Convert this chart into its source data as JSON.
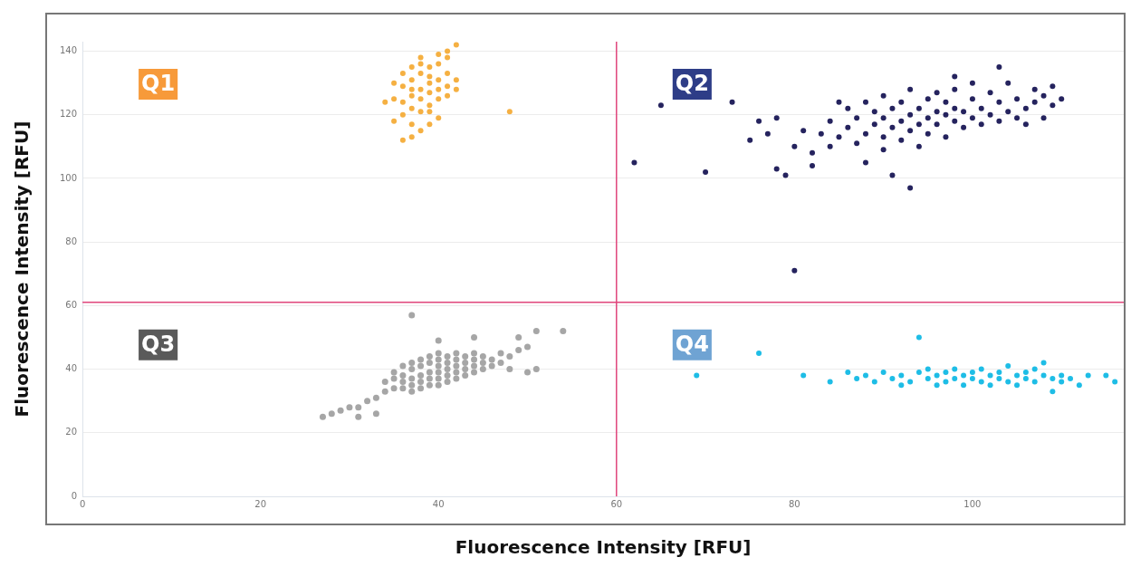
{
  "chart_data": {
    "type": "scatter",
    "xlabel": "Fluorescence Intensity [RFU]",
    "ylabel": "Fluorescence Intensity [RFU]",
    "xlim": [
      0,
      117
    ],
    "ylim": [
      0,
      143
    ],
    "xticks": [
      0,
      20,
      40,
      60,
      80,
      100
    ],
    "yticks": [
      0,
      20,
      40,
      60,
      80,
      100,
      120,
      140
    ],
    "grid": "y",
    "legend": false,
    "marker": "circle",
    "ref_lines": [
      {
        "axis": "x",
        "value": 60,
        "color": "#e0457b"
      },
      {
        "axis": "y",
        "value": 61,
        "color": "#e0457b"
      }
    ],
    "annotations": [
      "Q1",
      "Q2",
      "Q3",
      "Q4"
    ],
    "series": [
      {
        "color": "#f5b042",
        "x": [
          36,
          37,
          38,
          39,
          40,
          38,
          37,
          39,
          40,
          41,
          36,
          35,
          37,
          38,
          39,
          40,
          41,
          42,
          40,
          39,
          38,
          37,
          36,
          35,
          34,
          36,
          35,
          37,
          39,
          40,
          38,
          36,
          37,
          41,
          42,
          41,
          41,
          42,
          40,
          38,
          39,
          38,
          37,
          39,
          48
        ],
        "values": [
          124,
          126,
          128,
          130,
          131,
          133,
          131,
          127,
          128,
          133,
          129,
          125,
          122,
          121,
          123,
          125,
          129,
          131,
          136,
          135,
          136,
          135,
          133,
          130,
          124,
          120,
          118,
          117,
          117,
          119,
          115,
          112,
          113,
          126,
          128,
          138,
          140,
          142,
          139,
          138,
          132,
          125,
          128,
          121,
          121
        ]
      },
      {
        "color": "#25235e",
        "x": [
          62,
          65,
          70,
          73,
          80,
          75,
          76,
          77,
          78,
          79,
          80,
          81,
          82,
          78,
          82,
          83,
          84,
          84,
          85,
          86,
          86,
          87,
          87,
          88,
          88,
          89,
          89,
          90,
          90,
          90,
          90,
          91,
          91,
          92,
          92,
          92,
          93,
          93,
          93,
          94,
          94,
          94,
          95,
          95,
          95,
          96,
          96,
          96,
          97,
          97,
          97,
          98,
          98,
          98,
          99,
          99,
          100,
          100,
          100,
          101,
          101,
          102,
          102,
          103,
          103,
          104,
          104,
          105,
          105,
          106,
          106,
          107,
          107,
          108,
          108,
          109,
          110,
          109,
          103,
          93,
          91,
          98,
          85,
          88
        ],
        "values": [
          105,
          123,
          102,
          124,
          71,
          112,
          118,
          114,
          103,
          101,
          110,
          115,
          108,
          119,
          104,
          114,
          118,
          110,
          113,
          116,
          122,
          111,
          119,
          114,
          124,
          117,
          121,
          109,
          113,
          119,
          126,
          116,
          122,
          112,
          118,
          124,
          120,
          128,
          115,
          110,
          117,
          122,
          125,
          119,
          114,
          121,
          127,
          117,
          120,
          124,
          113,
          118,
          122,
          128,
          116,
          121,
          119,
          125,
          130,
          117,
          122,
          120,
          127,
          124,
          118,
          121,
          130,
          119,
          125,
          122,
          117,
          124,
          128,
          119,
          126,
          123,
          125,
          129,
          135,
          97,
          101,
          132,
          124,
          105
        ]
      },
      {
        "color": "#a6a6a6",
        "x": [
          27,
          28,
          29,
          30,
          31,
          31,
          32,
          33,
          33,
          34,
          34,
          35,
          35,
          35,
          36,
          36,
          36,
          36,
          37,
          37,
          37,
          37,
          37,
          38,
          38,
          38,
          38,
          38,
          39,
          39,
          39,
          39,
          39,
          40,
          40,
          40,
          40,
          40,
          40,
          41,
          41,
          41,
          41,
          41,
          42,
          42,
          42,
          42,
          42,
          43,
          43,
          43,
          43,
          44,
          44,
          44,
          44,
          45,
          45,
          45,
          46,
          46,
          47,
          47,
          48,
          48,
          49,
          49,
          50,
          50,
          51,
          51,
          54,
          37,
          40,
          44
        ],
        "values": [
          25,
          26,
          27,
          28,
          25,
          28,
          30,
          26,
          31,
          33,
          36,
          34,
          37,
          39,
          34,
          36,
          38,
          41,
          33,
          35,
          37,
          40,
          42,
          34,
          36,
          38,
          41,
          43,
          35,
          37,
          39,
          42,
          44,
          35,
          37,
          39,
          41,
          43,
          45,
          36,
          38,
          40,
          42,
          44,
          37,
          39,
          41,
          43,
          45,
          38,
          40,
          42,
          44,
          39,
          41,
          43,
          45,
          40,
          42,
          44,
          41,
          43,
          42,
          45,
          44,
          40,
          50,
          46,
          47,
          39,
          52,
          40,
          52,
          57,
          49,
          50
        ]
      },
      {
        "color": "#1ebde6",
        "x": [
          69,
          76,
          81,
          84,
          86,
          87,
          88,
          89,
          90,
          91,
          92,
          92,
          93,
          94,
          94,
          95,
          95,
          96,
          96,
          97,
          97,
          98,
          98,
          99,
          99,
          100,
          100,
          101,
          101,
          102,
          102,
          103,
          103,
          104,
          104,
          105,
          105,
          106,
          106,
          107,
          107,
          108,
          108,
          109,
          109,
          110,
          110,
          111,
          112,
          113,
          115,
          116
        ],
        "values": [
          38,
          45,
          38,
          36,
          39,
          37,
          38,
          36,
          39,
          37,
          35,
          38,
          36,
          39,
          50,
          37,
          40,
          35,
          38,
          39,
          36,
          37,
          40,
          38,
          35,
          39,
          37,
          36,
          40,
          38,
          35,
          39,
          37,
          41,
          36,
          38,
          35,
          39,
          37,
          40,
          36,
          38,
          42,
          33,
          37,
          38,
          36,
          37,
          35,
          38,
          38,
          36
        ]
      }
    ]
  }
}
